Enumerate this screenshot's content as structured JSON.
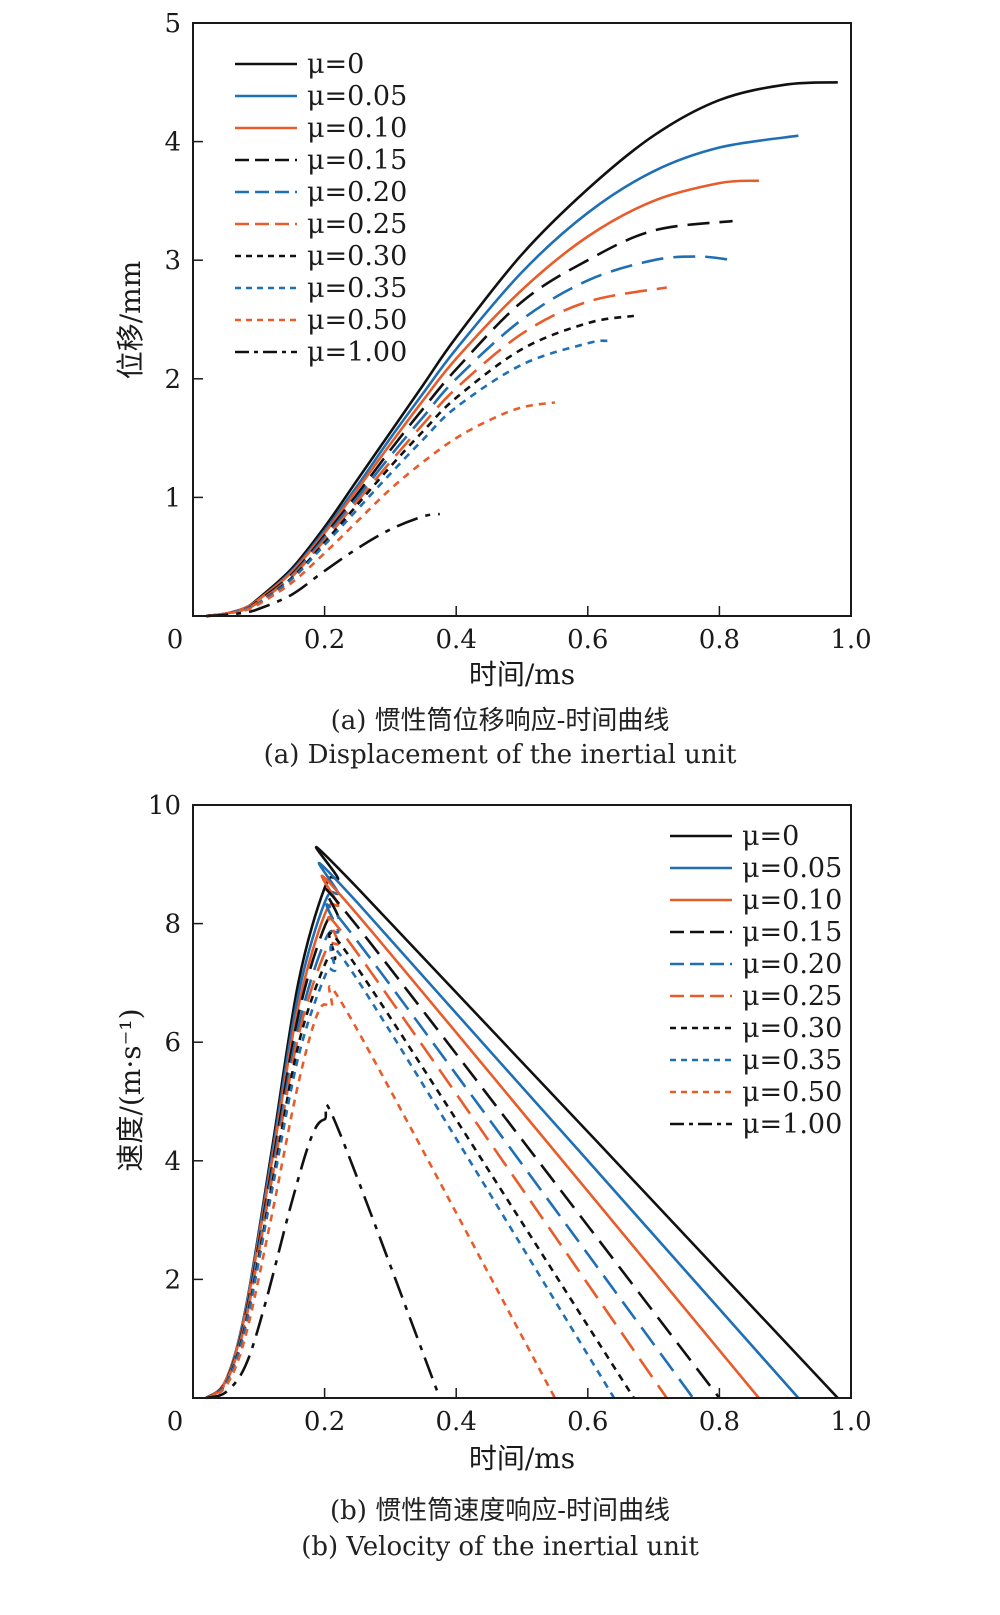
{
  "chart_data": [
    {
      "type": "line",
      "caption_cn": "(a) 惯性筒位移响应-时间曲线",
      "caption_en": "(a) Displacement of the inertial unit",
      "xlabel": "时间/ms",
      "ylabel": "位移/mm",
      "xlim": [
        0,
        1.0
      ],
      "ylim": [
        0,
        5
      ],
      "xticks": [
        "0",
        "0.2",
        "0.4",
        "0.6",
        "0.8",
        "1.0"
      ],
      "yticks": [
        "1",
        "2",
        "3",
        "4",
        "5"
      ],
      "legend_position": "top-left",
      "series": [
        {
          "name": "μ=0",
          "color": "#111111",
          "dash": "solid",
          "x": [
            0.02,
            0.05,
            0.08,
            0.1,
            0.15,
            0.2,
            0.25,
            0.3,
            0.35,
            0.4,
            0.5,
            0.6,
            0.7,
            0.8,
            0.9,
            0.98
          ],
          "y": [
            0,
            0.02,
            0.07,
            0.15,
            0.4,
            0.75,
            1.15,
            1.55,
            1.95,
            2.35,
            3.05,
            3.6,
            4.05,
            4.35,
            4.48,
            4.5
          ]
        },
        {
          "name": "μ=0.05",
          "color": "#1f6fb5",
          "dash": "solid",
          "x": [
            0.02,
            0.05,
            0.08,
            0.1,
            0.15,
            0.2,
            0.25,
            0.3,
            0.35,
            0.4,
            0.5,
            0.6,
            0.7,
            0.8,
            0.92
          ],
          "y": [
            0,
            0.02,
            0.07,
            0.14,
            0.38,
            0.72,
            1.1,
            1.5,
            1.88,
            2.25,
            2.9,
            3.4,
            3.75,
            3.95,
            4.05
          ]
        },
        {
          "name": "μ=0.10",
          "color": "#e85c2a",
          "dash": "solid",
          "x": [
            0.02,
            0.05,
            0.08,
            0.1,
            0.15,
            0.2,
            0.25,
            0.3,
            0.35,
            0.4,
            0.5,
            0.6,
            0.7,
            0.8,
            0.86
          ],
          "y": [
            0,
            0.02,
            0.07,
            0.14,
            0.37,
            0.7,
            1.07,
            1.45,
            1.82,
            2.17,
            2.75,
            3.2,
            3.5,
            3.65,
            3.67
          ]
        },
        {
          "name": "μ=0.15",
          "color": "#111111",
          "dash": "long",
          "x": [
            0.02,
            0.05,
            0.08,
            0.1,
            0.15,
            0.2,
            0.25,
            0.3,
            0.35,
            0.4,
            0.5,
            0.6,
            0.7,
            0.82
          ],
          "y": [
            0,
            0.02,
            0.06,
            0.13,
            0.35,
            0.68,
            1.03,
            1.4,
            1.75,
            2.08,
            2.65,
            3.0,
            3.25,
            3.33
          ]
        },
        {
          "name": "μ=0.20",
          "color": "#1f6fb5",
          "dash": "long",
          "x": [
            0.02,
            0.05,
            0.08,
            0.1,
            0.15,
            0.2,
            0.25,
            0.3,
            0.35,
            0.4,
            0.5,
            0.6,
            0.7,
            0.77,
            0.82
          ],
          "y": [
            0,
            0.02,
            0.06,
            0.12,
            0.34,
            0.66,
            1.0,
            1.35,
            1.68,
            2.0,
            2.5,
            2.83,
            3.0,
            3.03,
            3.0
          ]
        },
        {
          "name": "μ=0.25",
          "color": "#e85c2a",
          "dash": "long",
          "x": [
            0.02,
            0.05,
            0.08,
            0.1,
            0.15,
            0.2,
            0.25,
            0.3,
            0.35,
            0.4,
            0.5,
            0.6,
            0.72
          ],
          "y": [
            0,
            0.02,
            0.06,
            0.12,
            0.33,
            0.64,
            0.97,
            1.3,
            1.62,
            1.92,
            2.38,
            2.65,
            2.77
          ]
        },
        {
          "name": "μ=0.30",
          "color": "#111111",
          "dash": "short",
          "x": [
            0.02,
            0.05,
            0.08,
            0.1,
            0.15,
            0.2,
            0.25,
            0.3,
            0.35,
            0.4,
            0.5,
            0.6,
            0.67
          ],
          "y": [
            0,
            0.02,
            0.06,
            0.11,
            0.32,
            0.62,
            0.94,
            1.26,
            1.56,
            1.84,
            2.25,
            2.47,
            2.53
          ]
        },
        {
          "name": "μ=0.35",
          "color": "#1f6fb5",
          "dash": "short",
          "x": [
            0.02,
            0.05,
            0.08,
            0.1,
            0.15,
            0.2,
            0.25,
            0.3,
            0.35,
            0.4,
            0.5,
            0.6,
            0.63
          ],
          "y": [
            0,
            0.02,
            0.06,
            0.11,
            0.31,
            0.6,
            0.9,
            1.2,
            1.49,
            1.76,
            2.12,
            2.3,
            2.32
          ]
        },
        {
          "name": "μ=0.50",
          "color": "#e85c2a",
          "dash": "short",
          "x": [
            0.02,
            0.05,
            0.08,
            0.1,
            0.15,
            0.2,
            0.25,
            0.3,
            0.35,
            0.4,
            0.45,
            0.5,
            0.55
          ],
          "y": [
            0,
            0.02,
            0.05,
            0.1,
            0.28,
            0.53,
            0.8,
            1.07,
            1.3,
            1.5,
            1.65,
            1.76,
            1.8
          ]
        },
        {
          "name": "μ=1.00",
          "color": "#111111",
          "dash": "dashdot",
          "x": [
            0.02,
            0.05,
            0.08,
            0.1,
            0.15,
            0.2,
            0.25,
            0.3,
            0.35,
            0.375
          ],
          "y": [
            0,
            0.01,
            0.03,
            0.06,
            0.18,
            0.38,
            0.57,
            0.73,
            0.84,
            0.86
          ]
        }
      ]
    },
    {
      "type": "line",
      "caption_cn": "(b) 惯性筒速度响应-时间曲线",
      "caption_en": "(b) Velocity of the inertial unit",
      "xlabel": "时间/ms",
      "ylabel": "速度/(m·s⁻¹)",
      "xlim": [
        0,
        1.0
      ],
      "ylim": [
        0,
        10
      ],
      "xticks": [
        "0",
        "0.2",
        "0.4",
        "0.6",
        "0.8",
        "1.0"
      ],
      "yticks": [
        "2",
        "4",
        "6",
        "8",
        "10"
      ],
      "legend_position": "top-right",
      "series": [
        {
          "name": "μ=0",
          "color": "#111111",
          "dash": "solid",
          "x": [
            0.02,
            0.05,
            0.08,
            0.12,
            0.16,
            0.2,
            0.22,
            0.25,
            0.98
          ],
          "y": [
            0,
            0.3,
            1.5,
            4.2,
            7.0,
            8.6,
            8.75,
            8.6,
            0
          ]
        },
        {
          "name": "μ=0.05",
          "color": "#1f6fb5",
          "dash": "solid",
          "x": [
            0.02,
            0.05,
            0.08,
            0.12,
            0.16,
            0.2,
            0.22,
            0.25,
            0.92
          ],
          "y": [
            0,
            0.3,
            1.5,
            4.1,
            6.8,
            8.35,
            8.5,
            8.35,
            0
          ]
        },
        {
          "name": "μ=0.10",
          "color": "#e85c2a",
          "dash": "solid",
          "x": [
            0.02,
            0.05,
            0.08,
            0.12,
            0.16,
            0.2,
            0.22,
            0.25,
            0.86
          ],
          "y": [
            0,
            0.3,
            1.45,
            4.0,
            6.6,
            8.15,
            8.3,
            8.15,
            0
          ]
        },
        {
          "name": "μ=0.15",
          "color": "#111111",
          "dash": "long",
          "x": [
            0.02,
            0.05,
            0.08,
            0.12,
            0.16,
            0.2,
            0.22,
            0.25,
            0.8
          ],
          "y": [
            0,
            0.28,
            1.4,
            3.9,
            6.45,
            7.95,
            8.1,
            7.95,
            0
          ]
        },
        {
          "name": "μ=0.20",
          "color": "#1f6fb5",
          "dash": "long",
          "x": [
            0.02,
            0.05,
            0.08,
            0.12,
            0.16,
            0.2,
            0.22,
            0.25,
            0.76
          ],
          "y": [
            0,
            0.27,
            1.35,
            3.8,
            6.25,
            7.7,
            7.85,
            7.7,
            0
          ]
        },
        {
          "name": "μ=0.25",
          "color": "#e85c2a",
          "dash": "long",
          "x": [
            0.02,
            0.05,
            0.08,
            0.12,
            0.16,
            0.2,
            0.22,
            0.25,
            0.72
          ],
          "y": [
            0,
            0.26,
            1.3,
            3.7,
            6.1,
            7.5,
            7.65,
            7.5,
            0
          ]
        },
        {
          "name": "μ=0.30",
          "color": "#111111",
          "dash": "short",
          "x": [
            0.02,
            0.05,
            0.08,
            0.12,
            0.16,
            0.2,
            0.215,
            0.25,
            0.67
          ],
          "y": [
            0,
            0.25,
            1.25,
            3.6,
            5.95,
            7.3,
            7.4,
            7.25,
            0
          ]
        },
        {
          "name": "μ=0.35",
          "color": "#1f6fb5",
          "dash": "short",
          "x": [
            0.02,
            0.05,
            0.08,
            0.12,
            0.16,
            0.2,
            0.215,
            0.25,
            0.64
          ],
          "y": [
            0,
            0.24,
            1.2,
            3.5,
            5.75,
            7.1,
            7.2,
            7.05,
            0
          ]
        },
        {
          "name": "μ=0.50",
          "color": "#e85c2a",
          "dash": "short",
          "x": [
            0.02,
            0.05,
            0.08,
            0.12,
            0.16,
            0.19,
            0.21,
            0.24,
            0.55
          ],
          "y": [
            0,
            0.2,
            1.05,
            3.1,
            5.3,
            6.5,
            6.6,
            6.4,
            0
          ]
        },
        {
          "name": "μ=1.00",
          "color": "#111111",
          "dash": "dashdot",
          "x": [
            0.02,
            0.05,
            0.08,
            0.11,
            0.15,
            0.18,
            0.2,
            0.22,
            0.375
          ],
          "y": [
            0,
            0.1,
            0.55,
            1.6,
            3.3,
            4.4,
            4.7,
            4.55,
            0
          ]
        }
      ]
    }
  ]
}
